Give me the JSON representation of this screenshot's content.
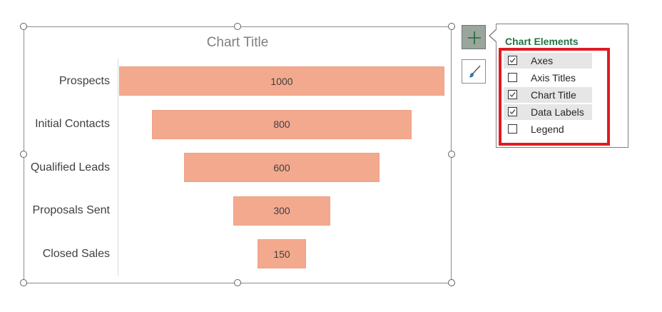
{
  "chart": {
    "title": "Chart Title"
  },
  "chart_data": {
    "type": "bar",
    "subtype": "funnel",
    "title": "Chart Title",
    "categories": [
      "Prospects",
      "Initial Contacts",
      "Qualified Leads",
      "Proposals Sent",
      "Closed Sales"
    ],
    "values": [
      1000,
      800,
      600,
      300,
      150
    ],
    "value_labels": [
      "1000",
      "800",
      "600",
      "300",
      "150"
    ],
    "data_labels": true,
    "bar_color": "#f3a98d",
    "bar_border": "#eea285"
  },
  "elements_panel": {
    "heading": "Chart Elements",
    "options": [
      {
        "label": "Axes",
        "checked": true
      },
      {
        "label": "Axis Titles",
        "checked": false
      },
      {
        "label": "Chart Title",
        "checked": true
      },
      {
        "label": "Data Labels",
        "checked": true
      },
      {
        "label": "Legend",
        "checked": false
      }
    ],
    "heading_color": "#217346",
    "highlight_color": "#e01b24"
  },
  "buttons": {
    "add_element_icon": "plus-icon",
    "style_icon": "paintbrush-icon"
  }
}
